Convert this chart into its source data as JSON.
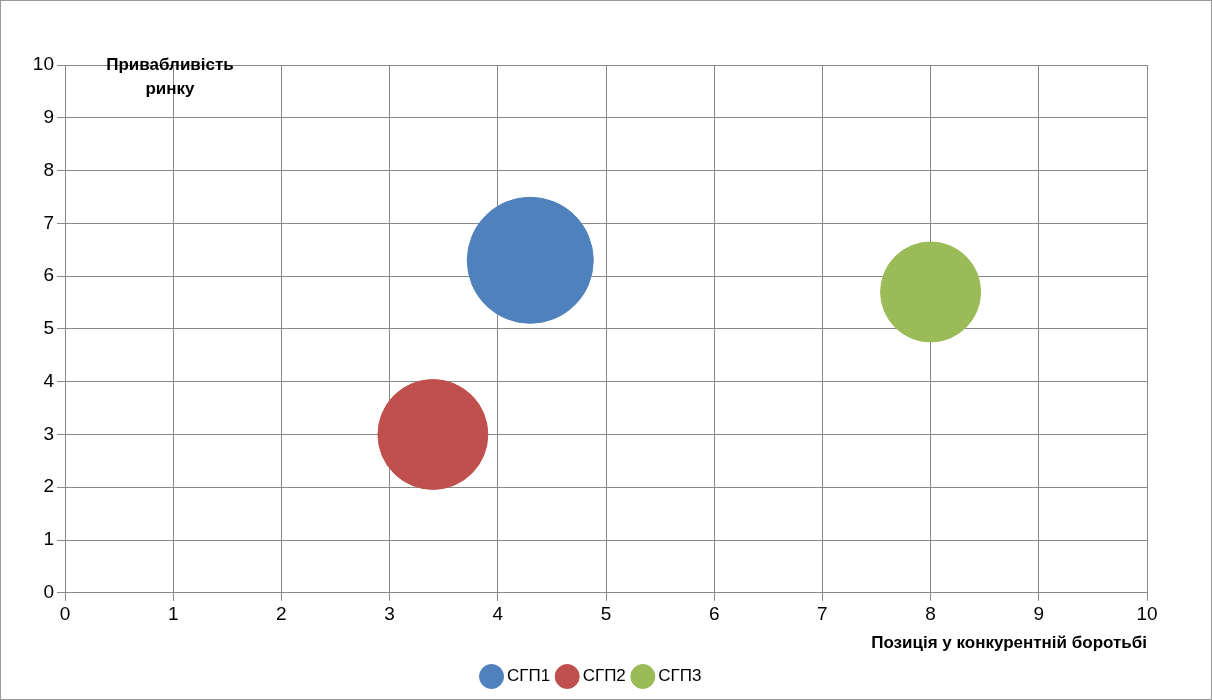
{
  "chart_data": {
    "type": "bubble",
    "xlabel": "Позиція у конкурентній боротьбі",
    "ylabel": "Привабливість ринку",
    "xlim": [
      0,
      10
    ],
    "xticks": [
      0,
      1,
      2,
      3,
      4,
      5,
      6,
      7,
      8,
      9,
      10
    ],
    "ylim": [
      0,
      10
    ],
    "yticks": [
      0,
      1,
      2,
      3,
      4,
      5,
      6,
      7,
      8,
      9,
      10
    ],
    "grid": true,
    "legend": "bottom",
    "series": [
      {
        "name": "СГП1",
        "color": "#4f81bd",
        "x": [
          4.3
        ],
        "values": [
          6.3
        ],
        "sizes": [
          1
        ]
      },
      {
        "name": "СГП2",
        "color": "#c0504d",
        "x": [
          3.4
        ],
        "values": [
          3.0
        ],
        "sizes": [
          0.76
        ]
      },
      {
        "name": "СГП3",
        "color": "#9bbb59",
        "x": [
          8.0
        ],
        "values": [
          5.7
        ],
        "sizes": [
          0.63
        ]
      }
    ]
  }
}
